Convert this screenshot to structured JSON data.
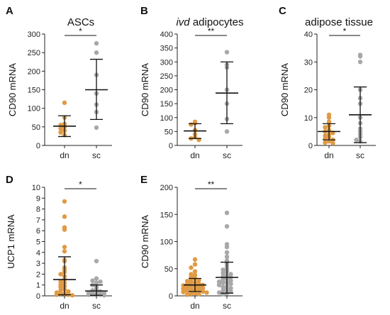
{
  "colors": {
    "dn": "#e09a45",
    "sc": "#a8a8a8",
    "axis": "#222222",
    "bar": "#111111"
  },
  "chart_data": [
    {
      "panel": "A",
      "type": "scatter",
      "title": "ASCs",
      "title_italic_prefix": "",
      "ylabel": "CD90 mRNA",
      "ylim": [
        0,
        300
      ],
      "yticks": [
        0,
        50,
        100,
        150,
        200,
        250,
        300
      ],
      "categories": [
        "dn",
        "sc"
      ],
      "significance": "*",
      "series": [
        {
          "name": "dn",
          "mean": 52,
          "sd_low": 24,
          "sd_high": 80,
          "values": [
            115,
            75,
            58,
            55,
            50,
            45,
            40,
            35,
            28
          ]
        },
        {
          "name": "sc",
          "mean": 150,
          "sd_low": 70,
          "sd_high": 232,
          "values": [
            275,
            250,
            190,
            140,
            110,
            90,
            48
          ]
        }
      ]
    },
    {
      "panel": "B",
      "type": "scatter",
      "title": "adipocytes",
      "title_italic_prefix": "ivd ",
      "ylabel": "CD90 mRNA",
      "ylim": [
        0,
        400
      ],
      "yticks": [
        0,
        50,
        100,
        150,
        200,
        250,
        300,
        350,
        400
      ],
      "categories": [
        "dn",
        "sc"
      ],
      "significance": "**",
      "series": [
        {
          "name": "dn",
          "mean": 52,
          "sd_low": 25,
          "sd_high": 78,
          "values": [
            85,
            80,
            75,
            55,
            40,
            30,
            25,
            20
          ]
        },
        {
          "name": "sc",
          "mean": 188,
          "sd_low": 78,
          "sd_high": 300,
          "values": [
            335,
            290,
            280,
            200,
            150,
            95,
            50
          ]
        }
      ]
    },
    {
      "panel": "C",
      "type": "scatter",
      "title": "adipose tissue",
      "title_italic_prefix": "",
      "ylabel": "CD90 mRNA",
      "ylim": [
        0,
        40
      ],
      "yticks": [
        0,
        10,
        20,
        30,
        40
      ],
      "categories": [
        "dn",
        "sc"
      ],
      "significance": "*",
      "series": [
        {
          "name": "dn",
          "mean": 5,
          "sd_low": 2,
          "sd_high": 7.8,
          "values": [
            11,
            10,
            8.5,
            7,
            6.5,
            5.5,
            5,
            4.5,
            4,
            3.5,
            3,
            2.5,
            2,
            1.5,
            1,
            0.8
          ]
        },
        {
          "name": "sc",
          "mean": 11,
          "sd_low": 1,
          "sd_high": 21,
          "values": [
            32.5,
            32,
            30,
            20,
            17,
            15,
            10,
            8,
            6,
            5,
            4,
            3,
            2,
            1.5
          ]
        }
      ]
    },
    {
      "panel": "D",
      "type": "scatter",
      "title": "",
      "title_italic_prefix": "",
      "ylabel": "UCP1 mRNA",
      "ylim": [
        0,
        10
      ],
      "yticks": [
        0,
        1,
        2,
        3,
        4,
        5,
        6,
        7,
        8,
        9,
        10
      ],
      "categories": [
        "dn",
        "sc"
      ],
      "significance": "*",
      "series": [
        {
          "name": "dn",
          "mean": 1.5,
          "sd_low": 0.1,
          "sd_high": 3.6,
          "values": [
            8.7,
            7.3,
            6.3,
            6.1,
            4.5,
            4.1,
            3.3,
            3.2,
            2.6,
            2.4,
            2.2,
            2.0,
            1.8,
            1.5,
            1.3,
            1.2,
            1.0,
            0.9,
            0.8,
            0.6,
            0.5,
            0.4,
            0.3,
            0.2,
            0.2,
            0.1,
            0.1,
            0.05
          ]
        },
        {
          "name": "sc",
          "mean": 0.45,
          "sd_low": 0.05,
          "sd_high": 1.0,
          "values": [
            3.2,
            1.6,
            1.4,
            1.3,
            1.2,
            1.0,
            0.8,
            0.6,
            0.5,
            0.4,
            0.3,
            0.3,
            0.2,
            0.2,
            0.1,
            0.1,
            0.05
          ]
        }
      ]
    },
    {
      "panel": "E",
      "type": "scatter",
      "title": "",
      "title_italic_prefix": "",
      "ylabel": "CD90 mRNA",
      "ylim": [
        0,
        200
      ],
      "yticks": [
        0,
        50,
        100,
        150,
        200
      ],
      "categories": [
        "dn",
        "sc"
      ],
      "significance": "**",
      "series": [
        {
          "name": "dn",
          "mean": 20,
          "sd_low": 8,
          "sd_high": 32,
          "values": [
            67,
            58,
            52,
            45,
            40,
            38,
            35,
            32,
            30,
            29,
            27,
            25,
            24,
            22,
            21,
            20,
            19,
            18,
            17,
            16,
            15,
            14,
            13,
            12,
            11,
            10,
            9,
            8,
            7,
            6,
            5,
            4,
            3,
            2
          ]
        },
        {
          "name": "sc",
          "mean": 34,
          "sd_low": 5,
          "sd_high": 62,
          "values": [
            153,
            128,
            95,
            90,
            80,
            72,
            65,
            60,
            55,
            50,
            48,
            45,
            42,
            40,
            38,
            36,
            34,
            32,
            30,
            28,
            26,
            25,
            24,
            22,
            20,
            18,
            16,
            14,
            12,
            10,
            8,
            6,
            5,
            3
          ]
        }
      ]
    }
  ]
}
